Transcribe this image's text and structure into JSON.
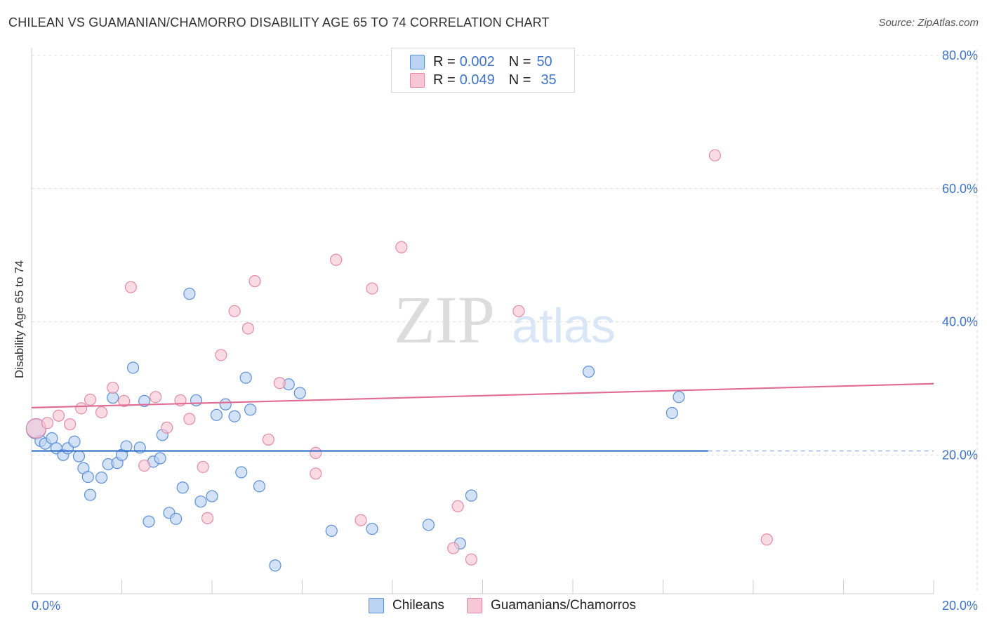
{
  "title": "CHILEAN VS GUAMANIAN/CHAMORRO DISABILITY AGE 65 TO 74 CORRELATION CHART",
  "source": "Source: ZipAtlas.com",
  "watermark": {
    "zip": "ZIP",
    "atlas": "atlas"
  },
  "colors": {
    "blue_fill": "#bcd3f2",
    "blue_stroke": "#5b8fd6",
    "blue_line": "#2f6dc7",
    "pink_fill": "#f8c7d5",
    "pink_stroke": "#e48aa8",
    "pink_line": "#e06b93",
    "axis_text": "#3f73c7",
    "grid": "#dcdcdc"
  },
  "legend": {
    "rows": [
      {
        "r_label": "R =",
        "r_value": "0.002",
        "n_label": "N =",
        "n_value": "50"
      },
      {
        "r_label": "R =",
        "r_value": "0.049",
        "n_label": "N =",
        "n_value": "35"
      }
    ]
  },
  "bottom_legend": {
    "chileans": "Chileans",
    "guamanians": "Guamanians/Chamorros"
  },
  "chart_data": {
    "type": "scatter",
    "title": "CHILEAN VS GUAMANIAN/CHAMORRO DISABILITY AGE 65 TO 74 CORRELATION CHART",
    "xlabel": "",
    "ylabel": "Disability Age 65 to 74",
    "xlim": [
      0,
      20
    ],
    "ylim": [
      0,
      80
    ],
    "x_tick_labels": [
      "0.0%",
      "20.0%"
    ],
    "y_ticks": [
      20,
      40,
      60,
      80
    ],
    "y_tick_labels": [
      "20.0%",
      "40.0%",
      "60.0%",
      "80.0%"
    ],
    "grid": true,
    "legend_position": "top-center",
    "series": [
      {
        "name": "Chileans",
        "r": 0.002,
        "n": 50,
        "trend": {
          "x": [
            0,
            15
          ],
          "y": [
            20.6,
            20.6
          ],
          "dashed_to": 20
        },
        "points": [
          [
            0.1,
            23.9
          ],
          [
            0.2,
            22.1
          ],
          [
            0.3,
            21.7
          ],
          [
            0.45,
            22.5
          ],
          [
            0.55,
            21.0
          ],
          [
            0.7,
            20.0
          ],
          [
            0.8,
            21.0
          ],
          [
            0.95,
            22.0
          ],
          [
            1.05,
            19.8
          ],
          [
            1.15,
            18.0
          ],
          [
            1.3,
            14.0
          ],
          [
            1.25,
            16.7
          ],
          [
            1.55,
            16.6
          ],
          [
            1.7,
            18.6
          ],
          [
            1.8,
            28.6
          ],
          [
            1.9,
            18.8
          ],
          [
            2.0,
            20.0
          ],
          [
            2.1,
            21.3
          ],
          [
            2.25,
            33.1
          ],
          [
            2.4,
            21.1
          ],
          [
            2.5,
            28.1
          ],
          [
            2.6,
            10.0
          ],
          [
            2.7,
            19.0
          ],
          [
            2.85,
            19.5
          ],
          [
            2.9,
            23.0
          ],
          [
            3.05,
            11.3
          ],
          [
            3.2,
            10.4
          ],
          [
            3.35,
            15.1
          ],
          [
            3.5,
            44.2
          ],
          [
            3.65,
            28.2
          ],
          [
            3.75,
            13.0
          ],
          [
            4.0,
            13.8
          ],
          [
            4.1,
            26.0
          ],
          [
            4.3,
            27.6
          ],
          [
            4.5,
            25.8
          ],
          [
            4.65,
            17.4
          ],
          [
            4.75,
            31.6
          ],
          [
            4.85,
            26.8
          ],
          [
            5.05,
            15.3
          ],
          [
            5.4,
            3.4
          ],
          [
            5.7,
            30.6
          ],
          [
            5.95,
            29.3
          ],
          [
            6.65,
            8.6
          ],
          [
            7.55,
            8.9
          ],
          [
            8.8,
            9.5
          ],
          [
            9.5,
            6.7
          ],
          [
            9.75,
            13.9
          ],
          [
            12.35,
            32.5
          ],
          [
            14.2,
            26.3
          ],
          [
            14.35,
            28.7
          ]
        ]
      },
      {
        "name": "Guamanians/Chamorros",
        "r": 0.049,
        "n": 35,
        "trend": {
          "x": [
            0,
            20
          ],
          "y": [
            27.1,
            30.7
          ]
        },
        "points": [
          [
            0.1,
            24.0
          ],
          [
            0.35,
            24.8
          ],
          [
            0.6,
            25.9
          ],
          [
            0.85,
            24.6
          ],
          [
            1.1,
            27.0
          ],
          [
            1.3,
            28.3
          ],
          [
            1.55,
            26.4
          ],
          [
            1.8,
            30.1
          ],
          [
            2.05,
            28.1
          ],
          [
            2.2,
            45.2
          ],
          [
            2.5,
            18.4
          ],
          [
            2.75,
            28.7
          ],
          [
            3.0,
            24.1
          ],
          [
            3.3,
            28.2
          ],
          [
            3.5,
            25.4
          ],
          [
            3.8,
            18.2
          ],
          [
            3.9,
            10.5
          ],
          [
            4.2,
            35.0
          ],
          [
            4.5,
            41.6
          ],
          [
            4.8,
            39.0
          ],
          [
            4.95,
            46.1
          ],
          [
            5.25,
            22.3
          ],
          [
            5.5,
            30.8
          ],
          [
            6.3,
            17.2
          ],
          [
            6.3,
            20.3
          ],
          [
            6.75,
            49.3
          ],
          [
            7.3,
            10.2
          ],
          [
            7.55,
            45.0
          ],
          [
            8.2,
            51.2
          ],
          [
            9.35,
            6.0
          ],
          [
            9.45,
            12.3
          ],
          [
            9.75,
            4.3
          ],
          [
            10.8,
            41.6
          ],
          [
            15.15,
            65.0
          ],
          [
            16.3,
            7.3
          ]
        ]
      }
    ]
  }
}
